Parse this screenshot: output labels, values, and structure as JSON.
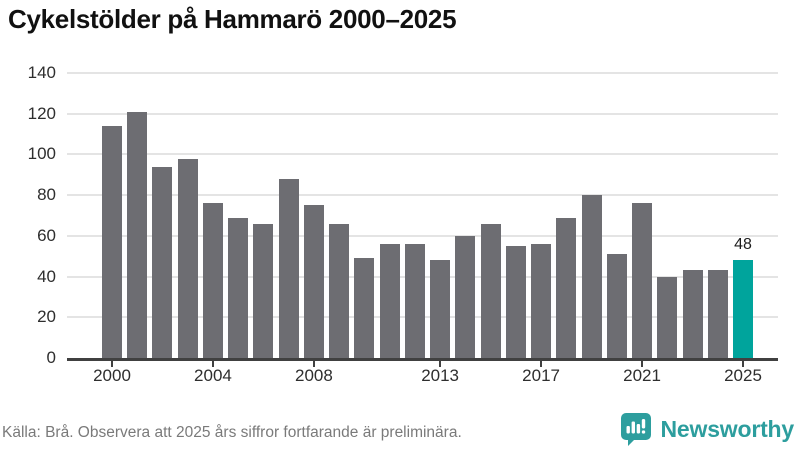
{
  "title": "Cykelstölder på Hammarö 2000–2025",
  "footer": {
    "source_note": "Källa: Brå. Observera att 2025 års siffror fortfarande är preliminära.",
    "brand": "Newsworthy"
  },
  "colors": {
    "bar": "#6d6d72",
    "highlight": "#00a49c",
    "gridline": "#e4e4e4",
    "baseline": "#404040",
    "title_text": "#111111",
    "axis_text": "#2e2e2e",
    "footer_text": "#7a7a7a",
    "brand_teal": "#2d9e9e"
  },
  "chart_data": {
    "type": "bar",
    "title": "Cykelstölder på Hammarö 2000–2025",
    "categories": [
      2000,
      2001,
      2002,
      2003,
      2004,
      2005,
      2006,
      2007,
      2008,
      2009,
      2010,
      2011,
      2012,
      2013,
      2014,
      2015,
      2016,
      2017,
      2018,
      2019,
      2020,
      2021,
      2022,
      2023,
      2024,
      2025
    ],
    "values": [
      114,
      121,
      94,
      98,
      76,
      69,
      66,
      88,
      75,
      66,
      49,
      56,
      56,
      48,
      60,
      66,
      55,
      56,
      69,
      80,
      51,
      76,
      40,
      43,
      43,
      48
    ],
    "highlight_index": 25,
    "value_label": {
      "index": 25,
      "text": "48"
    },
    "xtick_labels": [
      "2000",
      "2004",
      "2008",
      "2013",
      "2017",
      "2021",
      "2025"
    ],
    "xtick_indices": [
      0,
      4,
      8,
      13,
      17,
      21,
      25
    ],
    "yticks": [
      0,
      20,
      40,
      60,
      80,
      100,
      120,
      140
    ],
    "ylim": [
      0,
      140
    ],
    "grid": true,
    "legend": "none",
    "ylabel": "",
    "xlabel": ""
  }
}
